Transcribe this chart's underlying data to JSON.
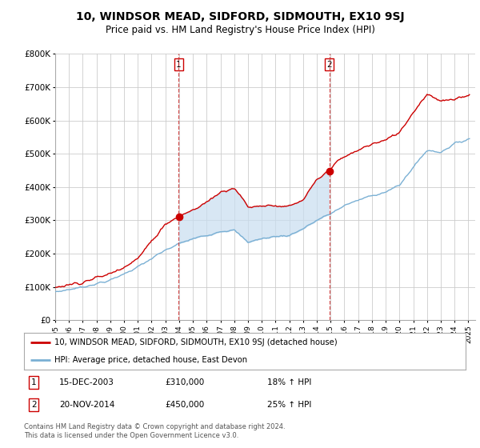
{
  "title": "10, WINDSOR MEAD, SIDFORD, SIDMOUTH, EX10 9SJ",
  "subtitle": "Price paid vs. HM Land Registry's House Price Index (HPI)",
  "title_fontsize": 10,
  "subtitle_fontsize": 8.5,
  "ylim": [
    0,
    800000
  ],
  "yticks": [
    0,
    100000,
    200000,
    300000,
    400000,
    500000,
    600000,
    700000,
    800000
  ],
  "ytick_labels": [
    "£0",
    "£100K",
    "£200K",
    "£300K",
    "£400K",
    "£500K",
    "£600K",
    "£700K",
    "£800K"
  ],
  "sale1_year": 2003.96,
  "sale1_price": 310000,
  "sale2_year": 2014.9,
  "sale2_price": 450000,
  "line_color_red": "#cc0000",
  "line_color_blue": "#7ab0d4",
  "shade_color": "#c8ddf0",
  "dashed_color": "#cc3333",
  "background_color": "#ffffff",
  "grid_color": "#cccccc",
  "legend_line1": "10, WINDSOR MEAD, SIDFORD, SIDMOUTH, EX10 9SJ (detached house)",
  "legend_line2": "HPI: Average price, detached house, East Devon",
  "footer": "Contains HM Land Registry data © Crown copyright and database right 2024.\nThis data is licensed under the Open Government Licence v3.0.",
  "table_entries": [
    {
      "num": "1",
      "date": "15-DEC-2003",
      "price": "£310,000",
      "hpi": "18% ↑ HPI"
    },
    {
      "num": "2",
      "date": "20-NOV-2014",
      "price": "£450,000",
      "hpi": "25% ↑ HPI"
    }
  ]
}
